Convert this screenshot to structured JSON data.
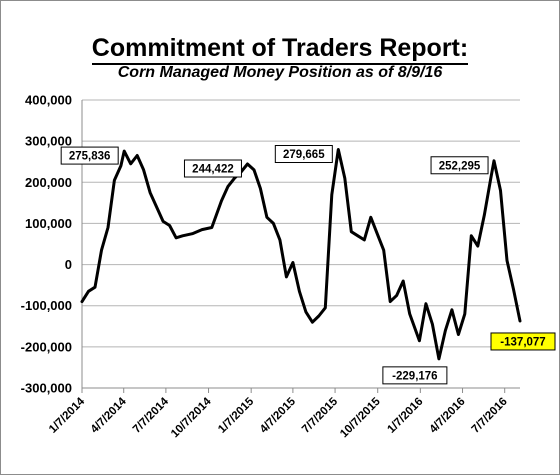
{
  "chart_data": {
    "type": "line",
    "title": "Commitment of Traders Report:",
    "subtitle": "Corn Managed Money Position as of 8/9/16",
    "ylim": [
      -300000,
      400000
    ],
    "yticks": [
      "400,000",
      "300,000",
      "200,000",
      "100,000",
      "0",
      "-100,000",
      "-200,000",
      "-300,000"
    ],
    "ytick_values": [
      400000,
      300000,
      200000,
      100000,
      0,
      -100000,
      -200000,
      -300000
    ],
    "xticks": [
      "1/7/2014",
      "4/7/2014",
      "7/7/2014",
      "10/7/2014",
      "1/7/2015",
      "4/7/2015",
      "7/7/2015",
      "10/7/2015",
      "1/7/2016",
      "4/7/2016",
      "7/7/2016"
    ],
    "grid": true,
    "series": [
      {
        "color": "#000000",
        "points": [
          [
            "2014-01-07",
            -90000
          ],
          [
            "2014-01-21",
            -65000
          ],
          [
            "2014-02-04",
            -55000
          ],
          [
            "2014-02-18",
            35000
          ],
          [
            "2014-03-04",
            90000
          ],
          [
            "2014-03-18",
            205000
          ],
          [
            "2014-04-01",
            240000
          ],
          [
            "2014-04-08",
            275836
          ],
          [
            "2014-04-22",
            245000
          ],
          [
            "2014-05-06",
            265000
          ],
          [
            "2014-05-20",
            230000
          ],
          [
            "2014-06-03",
            175000
          ],
          [
            "2014-06-17",
            140000
          ],
          [
            "2014-07-01",
            105000
          ],
          [
            "2014-07-15",
            95000
          ],
          [
            "2014-07-29",
            65000
          ],
          [
            "2014-08-12",
            70000
          ],
          [
            "2014-09-02",
            75000
          ],
          [
            "2014-09-23",
            85000
          ],
          [
            "2014-10-14",
            90000
          ],
          [
            "2014-11-04",
            155000
          ],
          [
            "2014-11-18",
            190000
          ],
          [
            "2014-12-02",
            210000
          ],
          [
            "2014-12-16",
            225000
          ],
          [
            "2014-12-30",
            244422
          ],
          [
            "2015-01-13",
            230000
          ],
          [
            "2015-01-27",
            185000
          ],
          [
            "2015-02-10",
            115000
          ],
          [
            "2015-02-24",
            100000
          ],
          [
            "2015-03-10",
            60000
          ],
          [
            "2015-03-24",
            -30000
          ],
          [
            "2015-04-07",
            5000
          ],
          [
            "2015-04-21",
            -65000
          ],
          [
            "2015-05-05",
            -115000
          ],
          [
            "2015-05-19",
            -140000
          ],
          [
            "2015-06-02",
            -125000
          ],
          [
            "2015-06-16",
            -105000
          ],
          [
            "2015-06-30",
            170000
          ],
          [
            "2015-07-14",
            279665
          ],
          [
            "2015-07-28",
            210000
          ],
          [
            "2015-08-11",
            80000
          ],
          [
            "2015-08-25",
            70000
          ],
          [
            "2015-09-08",
            60000
          ],
          [
            "2015-09-22",
            115000
          ],
          [
            "2015-10-06",
            75000
          ],
          [
            "2015-10-20",
            35000
          ],
          [
            "2015-11-03",
            -90000
          ],
          [
            "2015-11-17",
            -75000
          ],
          [
            "2015-12-01",
            -40000
          ],
          [
            "2015-12-15",
            -120000
          ],
          [
            "2016-01-05",
            -185000
          ],
          [
            "2016-01-19",
            -95000
          ],
          [
            "2016-02-02",
            -145000
          ],
          [
            "2016-02-16",
            -229176
          ],
          [
            "2016-03-01",
            -160000
          ],
          [
            "2016-03-15",
            -110000
          ],
          [
            "2016-03-29",
            -170000
          ],
          [
            "2016-04-12",
            -120000
          ],
          [
            "2016-04-26",
            70000
          ],
          [
            "2016-05-10",
            45000
          ],
          [
            "2016-05-24",
            120000
          ],
          [
            "2016-06-07",
            210000
          ],
          [
            "2016-06-14",
            252295
          ],
          [
            "2016-06-28",
            180000
          ],
          [
            "2016-07-12",
            10000
          ],
          [
            "2016-07-26",
            -60000
          ],
          [
            "2016-08-09",
            -137077
          ]
        ]
      }
    ],
    "annotations": [
      {
        "x": "2014-04-08",
        "y": 275836,
        "text": "275,836",
        "highlight": false,
        "anchor": "left"
      },
      {
        "x": "2014-12-30",
        "y": 244422,
        "text": "244,422",
        "highlight": false,
        "anchor": "left"
      },
      {
        "x": "2015-07-14",
        "y": 279665,
        "text": "279,665",
        "highlight": false,
        "anchor": "left"
      },
      {
        "x": "2016-02-16",
        "y": -229176,
        "text": "-229,176",
        "highlight": false,
        "anchor": "below-left"
      },
      {
        "x": "2016-06-14",
        "y": 252295,
        "text": "252,295",
        "highlight": false,
        "anchor": "left"
      },
      {
        "x": "2016-08-09",
        "y": -137077,
        "text": "-137,077",
        "highlight": true,
        "color": "#ffff00",
        "anchor": "right"
      }
    ]
  }
}
